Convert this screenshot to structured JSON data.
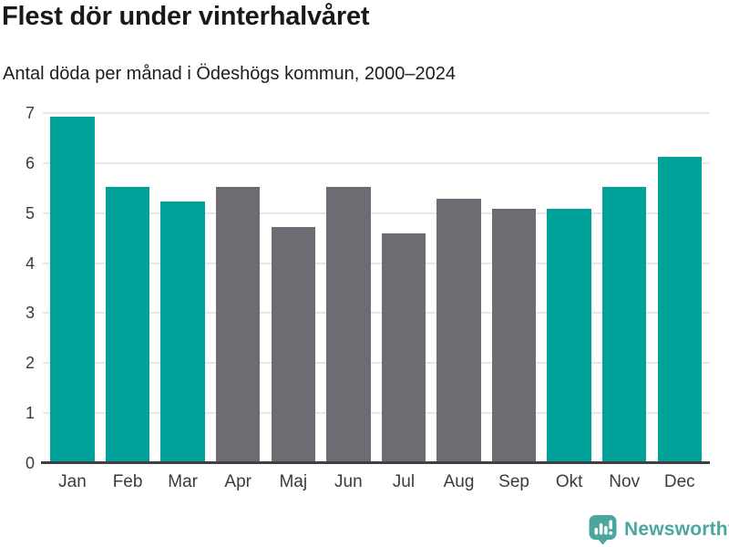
{
  "header": {
    "title": "Flest dör under vinterhalvåret",
    "subtitle": "Antal döda per månad i Ödeshögs kommun, 2000–2024"
  },
  "chart_data": {
    "type": "bar",
    "title": "Flest dör under vinterhalvåret",
    "subtitle": "Antal döda per månad i Ödeshögs kommun, 2000–2024",
    "categories": [
      "Jan",
      "Feb",
      "Mar",
      "Apr",
      "Maj",
      "Jun",
      "Jul",
      "Aug",
      "Sep",
      "Okt",
      "Nov",
      "Dec"
    ],
    "values": [
      6.92,
      5.52,
      5.24,
      5.52,
      4.72,
      5.52,
      4.6,
      5.28,
      5.08,
      5.08,
      5.52,
      6.12
    ],
    "highlighted_categories": [
      "Jan",
      "Feb",
      "Mar",
      "Okt",
      "Nov",
      "Dec"
    ],
    "bar_color_keys": [
      "highlight",
      "highlight",
      "highlight",
      "default",
      "default",
      "default",
      "default",
      "default",
      "default",
      "highlight",
      "highlight",
      "highlight"
    ],
    "xlabel": "",
    "ylabel": "",
    "ylim": [
      0,
      7
    ],
    "yticks": [
      0,
      1,
      2,
      3,
      4,
      5,
      6,
      7
    ],
    "grid": true,
    "legend": "none",
    "colors": {
      "highlight": "#00a29a",
      "default": "#6d6c72",
      "gridline": "#e8e6e7",
      "axis_line": "#413f44",
      "axis_text": "#3b3a3e"
    }
  },
  "footer": {
    "brand": "Newsworthy",
    "brand_color": "#4aa69e",
    "logo_icon": "bar-chart-speech-bubble"
  }
}
